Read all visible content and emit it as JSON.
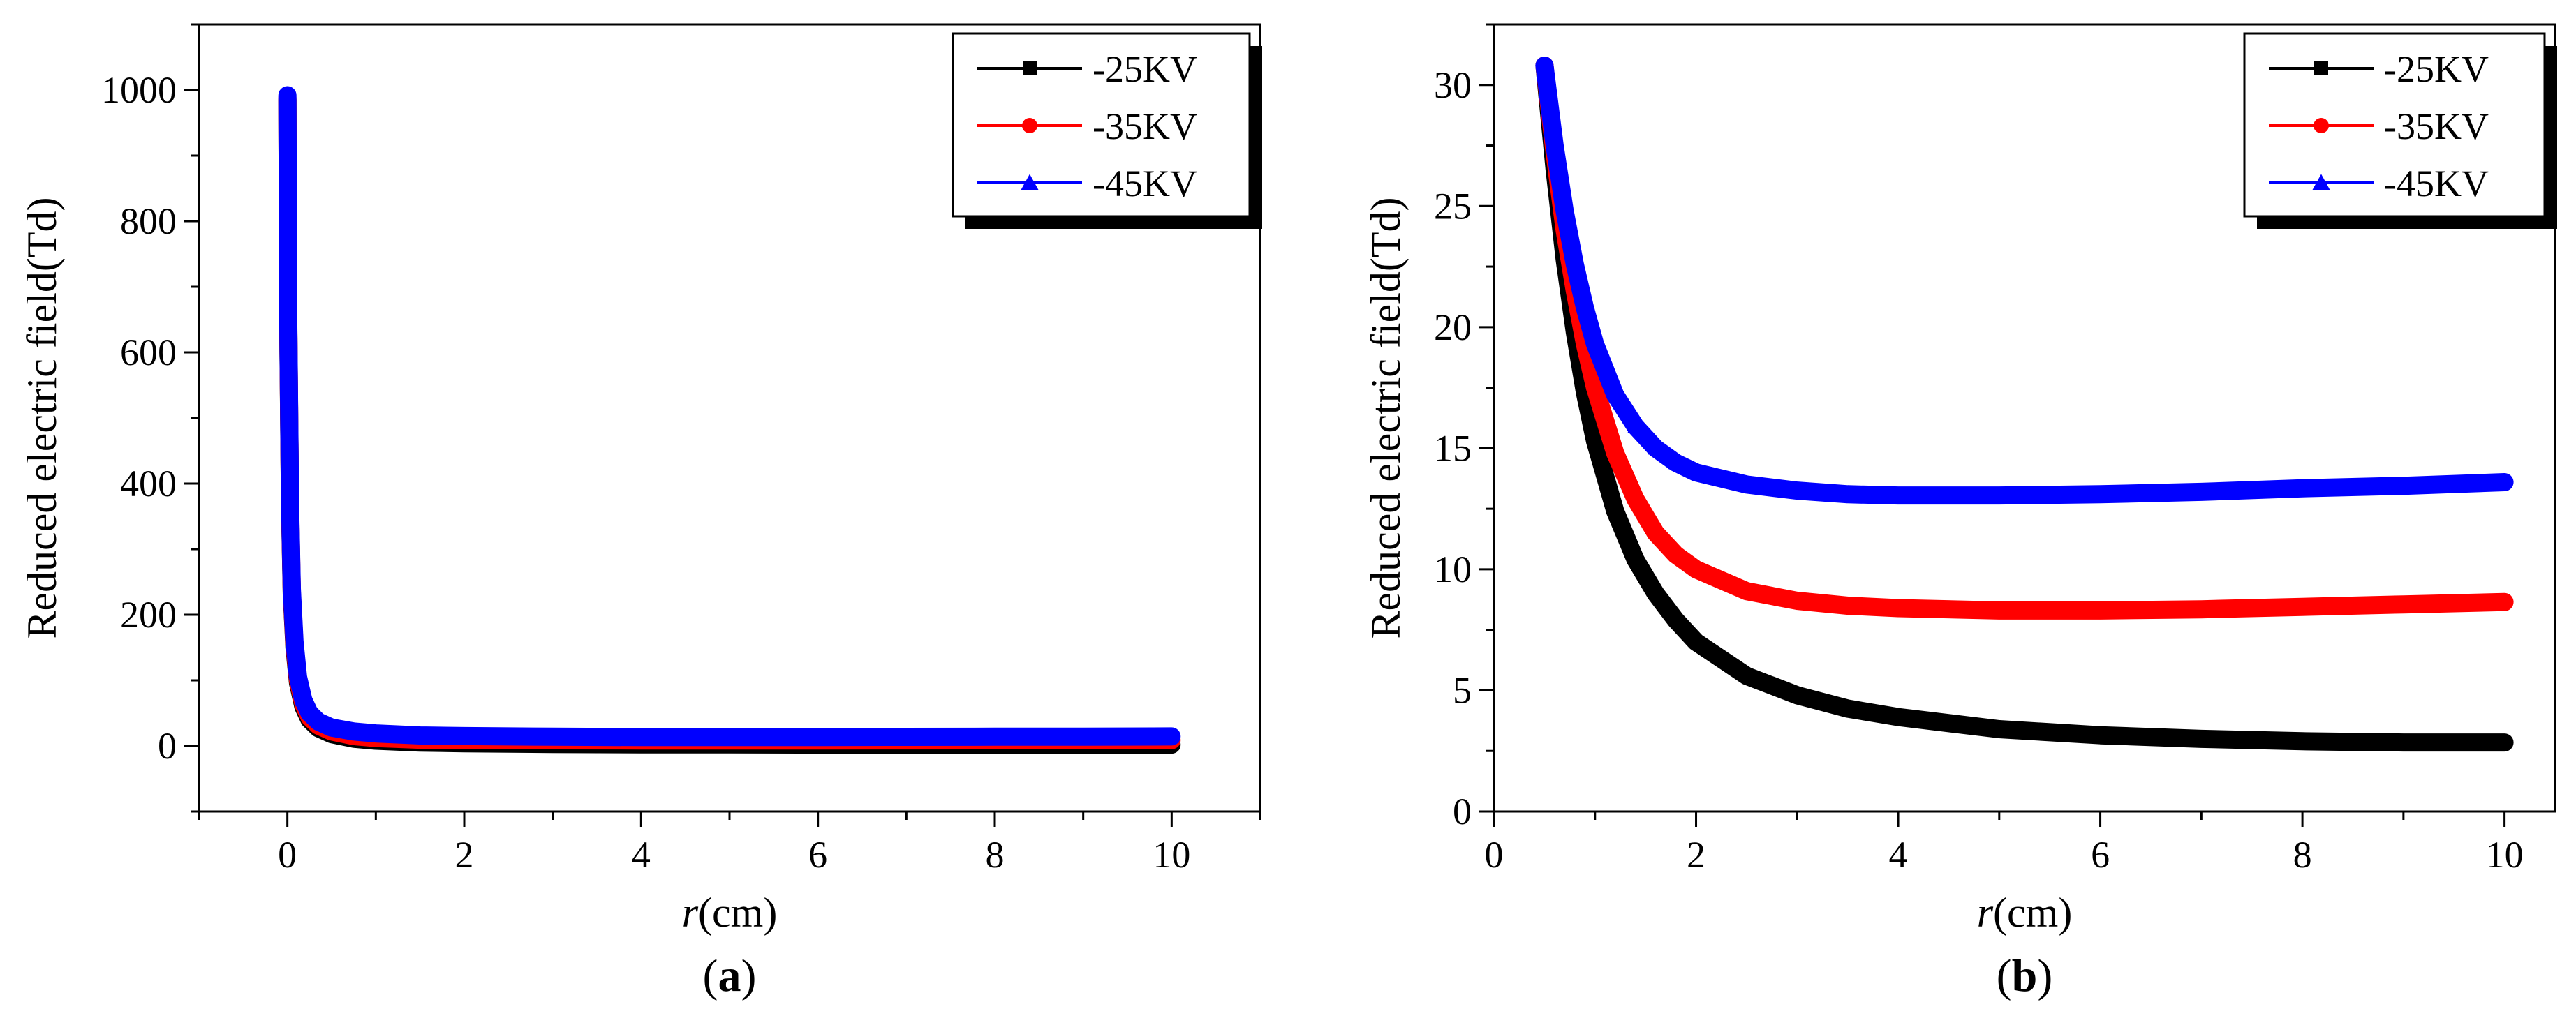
{
  "chart_data": [
    {
      "type": "line",
      "panel_label": "a",
      "xlabel_var": "r",
      "xlabel_unit": "(cm)",
      "ylabel": "Reduced electric field(Td)",
      "xlim": [
        -1,
        11
      ],
      "ylim": [
        -100,
        1100
      ],
      "xticks": [
        0,
        2,
        4,
        6,
        8,
        10
      ],
      "yticks": [
        0,
        200,
        400,
        600,
        800,
        1000
      ],
      "legend_position": "top-right",
      "series": [
        {
          "name": "-25KV",
          "color": "#000000",
          "marker": "square",
          "x": [
            0.0,
            0.01,
            0.03,
            0.05,
            0.08,
            0.12,
            0.18,
            0.25,
            0.35,
            0.5,
            0.75,
            1,
            1.5,
            2,
            3,
            4,
            5,
            6,
            7,
            8,
            9,
            10
          ],
          "y": [
            985,
            640,
            360,
            230,
            150,
            96,
            60,
            40,
            27,
            18,
            11,
            8,
            5,
            4,
            3,
            2.5,
            2.3,
            2.1,
            2.0,
            2.0,
            2.0,
            2.0
          ]
        },
        {
          "name": "-35KV",
          "color": "#ff0000",
          "marker": "circle",
          "x": [
            0.0,
            0.01,
            0.03,
            0.05,
            0.08,
            0.12,
            0.18,
            0.25,
            0.35,
            0.5,
            0.75,
            1,
            1.5,
            2,
            3,
            4,
            5,
            6,
            7,
            8,
            9,
            10
          ],
          "y": [
            988,
            645,
            365,
            235,
            155,
            100,
            64,
            44,
            31,
            22,
            15,
            12,
            9.5,
            9,
            8.5,
            8.3,
            8.3,
            8.3,
            8.4,
            8.5,
            8.6,
            8.7
          ]
        },
        {
          "name": "-45KV",
          "color": "#0000ff",
          "marker": "triangle",
          "x": [
            0.0,
            0.01,
            0.03,
            0.05,
            0.08,
            0.12,
            0.18,
            0.25,
            0.35,
            0.5,
            0.75,
            1,
            1.5,
            2,
            3,
            4,
            5,
            6,
            7,
            8,
            9,
            10
          ],
          "y": [
            992,
            650,
            370,
            240,
            160,
            105,
            70,
            50,
            37,
            28,
            22,
            19,
            16,
            15,
            14,
            13.5,
            13.5,
            13.6,
            13.8,
            14,
            14.2,
            14.5
          ]
        }
      ]
    },
    {
      "type": "line",
      "panel_label": "b",
      "xlabel_var": "r",
      "xlabel_unit": "(cm)",
      "ylabel": "Reduced electric field(Td)",
      "xlim": [
        0,
        10.5
      ],
      "ylim": [
        0,
        32.5
      ],
      "xticks": [
        0,
        2,
        4,
        6,
        8,
        10
      ],
      "yticks": [
        0,
        5,
        10,
        15,
        20,
        25,
        30
      ],
      "legend_position": "top-right",
      "series": [
        {
          "name": "-25KV",
          "color": "#000000",
          "marker": "square",
          "x": [
            0.5,
            0.6,
            0.7,
            0.8,
            0.9,
            1.0,
            1.2,
            1.4,
            1.6,
            1.8,
            2.0,
            2.5,
            3,
            3.5,
            4,
            5,
            6,
            7,
            8,
            9,
            10
          ],
          "y": [
            30.8,
            26.5,
            22.8,
            19.8,
            17.3,
            15.3,
            12.4,
            10.4,
            9.0,
            7.9,
            7.0,
            5.6,
            4.8,
            4.25,
            3.9,
            3.4,
            3.15,
            3.0,
            2.9,
            2.85,
            2.85
          ]
        },
        {
          "name": "-35KV",
          "color": "#ff0000",
          "marker": "circle",
          "x": [
            0.5,
            0.6,
            0.7,
            0.8,
            0.9,
            1.0,
            1.2,
            1.4,
            1.6,
            1.8,
            2.0,
            2.5,
            3,
            3.5,
            4,
            5,
            6,
            7,
            8,
            9,
            10
          ],
          "y": [
            30.8,
            27.2,
            24.0,
            21.5,
            19.3,
            17.5,
            14.8,
            12.9,
            11.5,
            10.6,
            10.0,
            9.1,
            8.7,
            8.5,
            8.4,
            8.3,
            8.3,
            8.35,
            8.45,
            8.55,
            8.65
          ]
        },
        {
          "name": "-45KV",
          "color": "#0000ff",
          "marker": "triangle",
          "x": [
            0.5,
            0.6,
            0.7,
            0.8,
            0.9,
            1.0,
            1.2,
            1.4,
            1.6,
            1.8,
            2.0,
            2.5,
            3,
            3.5,
            4,
            5,
            6,
            7,
            8,
            9,
            10
          ],
          "y": [
            30.8,
            27.5,
            24.8,
            22.6,
            20.8,
            19.3,
            17.2,
            15.9,
            15.0,
            14.4,
            14.0,
            13.5,
            13.25,
            13.1,
            13.05,
            13.05,
            13.1,
            13.2,
            13.35,
            13.45,
            13.6
          ]
        }
      ]
    }
  ]
}
